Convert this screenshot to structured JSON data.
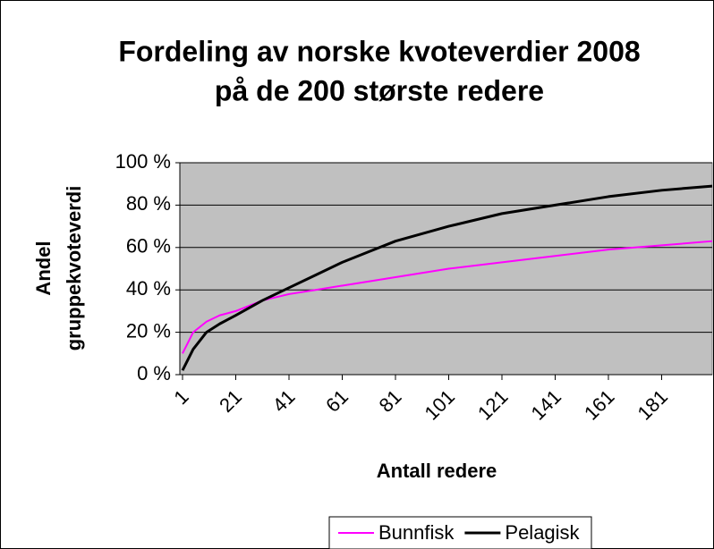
{
  "chart_data": {
    "type": "line",
    "title": [
      "Fordeling av norske kvoteverdier 2008",
      "på de 200 største redere"
    ],
    "xlabel": "Antall redere",
    "ylabel": [
      "Andel",
      "gruppekvoteverdi"
    ],
    "x": [
      1,
      5,
      10,
      15,
      21,
      31,
      41,
      51,
      61,
      71,
      81,
      101,
      121,
      141,
      161,
      181,
      200
    ],
    "series": [
      {
        "name": "Bunnfisk",
        "color": "#ff00ff",
        "values": [
          10,
          20,
          25,
          28,
          30,
          35,
          38,
          40,
          42,
          44,
          46,
          50,
          53,
          56,
          59,
          61,
          63
        ]
      },
      {
        "name": "Pelagisk",
        "color": "#000000",
        "values": [
          2,
          12,
          20,
          24,
          28,
          35,
          41,
          47,
          53,
          58,
          63,
          70,
          76,
          80,
          84,
          87,
          89
        ]
      }
    ],
    "xlim": [
      1,
      200
    ],
    "xticks": [
      1,
      21,
      41,
      61,
      81,
      101,
      121,
      141,
      161,
      181
    ],
    "ylim": [
      0,
      100
    ],
    "yticks": [
      {
        "value": 0,
        "label": "0 %"
      },
      {
        "value": 20,
        "label": "20 %"
      },
      {
        "value": 40,
        "label": "40 %"
      },
      {
        "value": 60,
        "label": "60 %"
      },
      {
        "value": 80,
        "label": "80 %"
      },
      {
        "value": 100,
        "label": "100 %"
      }
    ],
    "grid": true,
    "legend": "bottom"
  }
}
